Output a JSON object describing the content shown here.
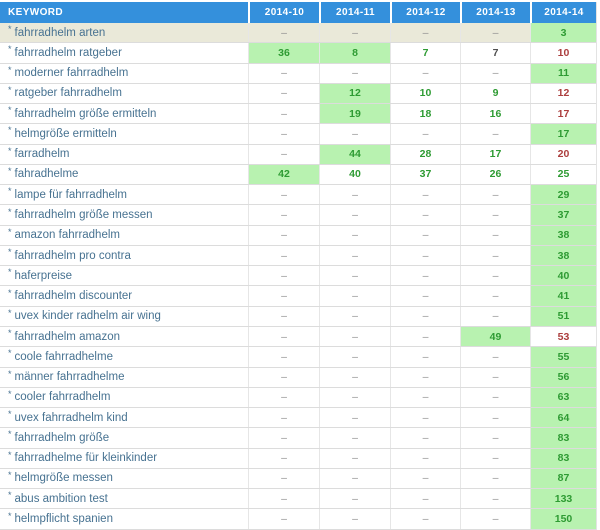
{
  "colors": {
    "header_bg": "#3490dc",
    "row_highlight_bg": "#eae9d9",
    "cell_highlight_bg": "#b8f2b0",
    "rank_up": "#2e9b33",
    "rank_down": "#ac3e3e",
    "rank_same": "#4f4f4f",
    "dash": "#8f8f8f",
    "keyword_text": "#477291"
  },
  "table": {
    "columns": [
      "KEYWORD",
      "2014-10",
      "2014-11",
      "2014-12",
      "2014-13",
      "2014-14"
    ],
    "row_prefix": "*",
    "dash": "–",
    "rows": [
      {
        "keyword": "fahrradhelm arten",
        "row_highlight": true,
        "cells": [
          {
            "v": "–",
            "s": "dash",
            "h": false
          },
          {
            "v": "–",
            "s": "dash",
            "h": false
          },
          {
            "v": "–",
            "s": "dash",
            "h": false
          },
          {
            "v": "–",
            "s": "dash",
            "h": false
          },
          {
            "v": "3",
            "s": "up",
            "h": true
          }
        ]
      },
      {
        "keyword": "fahrradhelm ratgeber",
        "row_highlight": false,
        "cells": [
          {
            "v": "36",
            "s": "up",
            "h": true
          },
          {
            "v": "8",
            "s": "up",
            "h": true
          },
          {
            "v": "7",
            "s": "up",
            "h": false
          },
          {
            "v": "7",
            "s": "same",
            "h": false
          },
          {
            "v": "10",
            "s": "down",
            "h": false
          }
        ]
      },
      {
        "keyword": "moderner fahrradhelm",
        "row_highlight": false,
        "cells": [
          {
            "v": "–",
            "s": "dash",
            "h": false
          },
          {
            "v": "–",
            "s": "dash",
            "h": false
          },
          {
            "v": "–",
            "s": "dash",
            "h": false
          },
          {
            "v": "–",
            "s": "dash",
            "h": false
          },
          {
            "v": "11",
            "s": "up",
            "h": true
          }
        ]
      },
      {
        "keyword": "ratgeber fahrradhelm",
        "row_highlight": false,
        "cells": [
          {
            "v": "–",
            "s": "dash",
            "h": false
          },
          {
            "v": "12",
            "s": "up",
            "h": true
          },
          {
            "v": "10",
            "s": "up",
            "h": false
          },
          {
            "v": "9",
            "s": "up",
            "h": false
          },
          {
            "v": "12",
            "s": "down",
            "h": false
          }
        ]
      },
      {
        "keyword": "fahrradhelm größe ermitteln",
        "row_highlight": false,
        "cells": [
          {
            "v": "–",
            "s": "dash",
            "h": false
          },
          {
            "v": "19",
            "s": "up",
            "h": true
          },
          {
            "v": "18",
            "s": "up",
            "h": false
          },
          {
            "v": "16",
            "s": "up",
            "h": false
          },
          {
            "v": "17",
            "s": "down",
            "h": false
          }
        ]
      },
      {
        "keyword": "helmgröße ermitteln",
        "row_highlight": false,
        "cells": [
          {
            "v": "–",
            "s": "dash",
            "h": false
          },
          {
            "v": "–",
            "s": "dash",
            "h": false
          },
          {
            "v": "–",
            "s": "dash",
            "h": false
          },
          {
            "v": "–",
            "s": "dash",
            "h": false
          },
          {
            "v": "17",
            "s": "up",
            "h": true
          }
        ]
      },
      {
        "keyword": "farradhelm",
        "row_highlight": false,
        "cells": [
          {
            "v": "–",
            "s": "dash",
            "h": false
          },
          {
            "v": "44",
            "s": "up",
            "h": true
          },
          {
            "v": "28",
            "s": "up",
            "h": false
          },
          {
            "v": "17",
            "s": "up",
            "h": false
          },
          {
            "v": "20",
            "s": "down",
            "h": false
          }
        ]
      },
      {
        "keyword": "fahradhelme",
        "row_highlight": false,
        "cells": [
          {
            "v": "42",
            "s": "up",
            "h": true
          },
          {
            "v": "40",
            "s": "up",
            "h": false
          },
          {
            "v": "37",
            "s": "up",
            "h": false
          },
          {
            "v": "26",
            "s": "up",
            "h": false
          },
          {
            "v": "25",
            "s": "up",
            "h": false
          }
        ]
      },
      {
        "keyword": "lampe für fahrradhelm",
        "row_highlight": false,
        "cells": [
          {
            "v": "–",
            "s": "dash",
            "h": false
          },
          {
            "v": "–",
            "s": "dash",
            "h": false
          },
          {
            "v": "–",
            "s": "dash",
            "h": false
          },
          {
            "v": "–",
            "s": "dash",
            "h": false
          },
          {
            "v": "29",
            "s": "up",
            "h": true
          }
        ]
      },
      {
        "keyword": "fahrradhelm größe messen",
        "row_highlight": false,
        "cells": [
          {
            "v": "–",
            "s": "dash",
            "h": false
          },
          {
            "v": "–",
            "s": "dash",
            "h": false
          },
          {
            "v": "–",
            "s": "dash",
            "h": false
          },
          {
            "v": "–",
            "s": "dash",
            "h": false
          },
          {
            "v": "37",
            "s": "up",
            "h": true
          }
        ]
      },
      {
        "keyword": "amazon fahrradhelm",
        "row_highlight": false,
        "cells": [
          {
            "v": "–",
            "s": "dash",
            "h": false
          },
          {
            "v": "–",
            "s": "dash",
            "h": false
          },
          {
            "v": "–",
            "s": "dash",
            "h": false
          },
          {
            "v": "–",
            "s": "dash",
            "h": false
          },
          {
            "v": "38",
            "s": "up",
            "h": true
          }
        ]
      },
      {
        "keyword": "fahrradhelm pro contra",
        "row_highlight": false,
        "cells": [
          {
            "v": "–",
            "s": "dash",
            "h": false
          },
          {
            "v": "–",
            "s": "dash",
            "h": false
          },
          {
            "v": "–",
            "s": "dash",
            "h": false
          },
          {
            "v": "–",
            "s": "dash",
            "h": false
          },
          {
            "v": "38",
            "s": "up",
            "h": true
          }
        ]
      },
      {
        "keyword": "haferpreise",
        "row_highlight": false,
        "cells": [
          {
            "v": "–",
            "s": "dash",
            "h": false
          },
          {
            "v": "–",
            "s": "dash",
            "h": false
          },
          {
            "v": "–",
            "s": "dash",
            "h": false
          },
          {
            "v": "–",
            "s": "dash",
            "h": false
          },
          {
            "v": "40",
            "s": "up",
            "h": true
          }
        ]
      },
      {
        "keyword": "fahrradhelm discounter",
        "row_highlight": false,
        "cells": [
          {
            "v": "–",
            "s": "dash",
            "h": false
          },
          {
            "v": "–",
            "s": "dash",
            "h": false
          },
          {
            "v": "–",
            "s": "dash",
            "h": false
          },
          {
            "v": "–",
            "s": "dash",
            "h": false
          },
          {
            "v": "41",
            "s": "up",
            "h": true
          }
        ]
      },
      {
        "keyword": "uvex kinder radhelm air wing",
        "row_highlight": false,
        "cells": [
          {
            "v": "–",
            "s": "dash",
            "h": false
          },
          {
            "v": "–",
            "s": "dash",
            "h": false
          },
          {
            "v": "–",
            "s": "dash",
            "h": false
          },
          {
            "v": "–",
            "s": "dash",
            "h": false
          },
          {
            "v": "51",
            "s": "up",
            "h": true
          }
        ]
      },
      {
        "keyword": "fahrradhelm amazon",
        "row_highlight": false,
        "cells": [
          {
            "v": "–",
            "s": "dash",
            "h": false
          },
          {
            "v": "–",
            "s": "dash",
            "h": false
          },
          {
            "v": "–",
            "s": "dash",
            "h": false
          },
          {
            "v": "49",
            "s": "up",
            "h": true
          },
          {
            "v": "53",
            "s": "down",
            "h": false
          }
        ]
      },
      {
        "keyword": "coole fahrradhelme",
        "row_highlight": false,
        "cells": [
          {
            "v": "–",
            "s": "dash",
            "h": false
          },
          {
            "v": "–",
            "s": "dash",
            "h": false
          },
          {
            "v": "–",
            "s": "dash",
            "h": false
          },
          {
            "v": "–",
            "s": "dash",
            "h": false
          },
          {
            "v": "55",
            "s": "up",
            "h": true
          }
        ]
      },
      {
        "keyword": "männer fahrradhelme",
        "row_highlight": false,
        "cells": [
          {
            "v": "–",
            "s": "dash",
            "h": false
          },
          {
            "v": "–",
            "s": "dash",
            "h": false
          },
          {
            "v": "–",
            "s": "dash",
            "h": false
          },
          {
            "v": "–",
            "s": "dash",
            "h": false
          },
          {
            "v": "56",
            "s": "up",
            "h": true
          }
        ]
      },
      {
        "keyword": "cooler fahrradhelm",
        "row_highlight": false,
        "cells": [
          {
            "v": "–",
            "s": "dash",
            "h": false
          },
          {
            "v": "–",
            "s": "dash",
            "h": false
          },
          {
            "v": "–",
            "s": "dash",
            "h": false
          },
          {
            "v": "–",
            "s": "dash",
            "h": false
          },
          {
            "v": "63",
            "s": "up",
            "h": true
          }
        ]
      },
      {
        "keyword": "uvex fahrradhelm kind",
        "row_highlight": false,
        "cells": [
          {
            "v": "–",
            "s": "dash",
            "h": false
          },
          {
            "v": "–",
            "s": "dash",
            "h": false
          },
          {
            "v": "–",
            "s": "dash",
            "h": false
          },
          {
            "v": "–",
            "s": "dash",
            "h": false
          },
          {
            "v": "64",
            "s": "up",
            "h": true
          }
        ]
      },
      {
        "keyword": "fahrradhelm größe",
        "row_highlight": false,
        "cells": [
          {
            "v": "–",
            "s": "dash",
            "h": false
          },
          {
            "v": "–",
            "s": "dash",
            "h": false
          },
          {
            "v": "–",
            "s": "dash",
            "h": false
          },
          {
            "v": "–",
            "s": "dash",
            "h": false
          },
          {
            "v": "83",
            "s": "up",
            "h": true
          }
        ]
      },
      {
        "keyword": "fahrradhelme für kleinkinder",
        "row_highlight": false,
        "cells": [
          {
            "v": "–",
            "s": "dash",
            "h": false
          },
          {
            "v": "–",
            "s": "dash",
            "h": false
          },
          {
            "v": "–",
            "s": "dash",
            "h": false
          },
          {
            "v": "–",
            "s": "dash",
            "h": false
          },
          {
            "v": "83",
            "s": "up",
            "h": true
          }
        ]
      },
      {
        "keyword": "helmgröße messen",
        "row_highlight": false,
        "cells": [
          {
            "v": "–",
            "s": "dash",
            "h": false
          },
          {
            "v": "–",
            "s": "dash",
            "h": false
          },
          {
            "v": "–",
            "s": "dash",
            "h": false
          },
          {
            "v": "–",
            "s": "dash",
            "h": false
          },
          {
            "v": "87",
            "s": "up",
            "h": true
          }
        ]
      },
      {
        "keyword": "abus ambition test",
        "row_highlight": false,
        "cells": [
          {
            "v": "–",
            "s": "dash",
            "h": false
          },
          {
            "v": "–",
            "s": "dash",
            "h": false
          },
          {
            "v": "–",
            "s": "dash",
            "h": false
          },
          {
            "v": "–",
            "s": "dash",
            "h": false
          },
          {
            "v": "133",
            "s": "up",
            "h": true
          }
        ]
      },
      {
        "keyword": "helmpflicht spanien",
        "row_highlight": false,
        "cells": [
          {
            "v": "–",
            "s": "dash",
            "h": false
          },
          {
            "v": "–",
            "s": "dash",
            "h": false
          },
          {
            "v": "–",
            "s": "dash",
            "h": false
          },
          {
            "v": "–",
            "s": "dash",
            "h": false
          },
          {
            "v": "150",
            "s": "up",
            "h": true
          }
        ]
      }
    ]
  }
}
